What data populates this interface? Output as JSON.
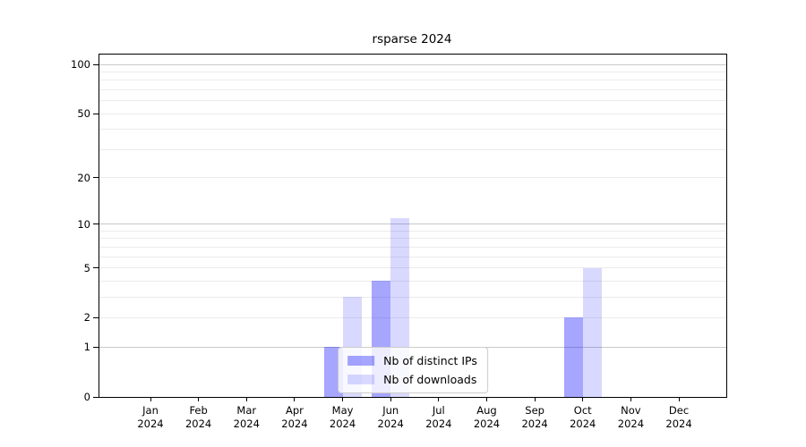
{
  "figure": {
    "title": "rsparse 2024"
  },
  "chart_data": {
    "type": "bar",
    "title": "rsparse 2024",
    "categories": [
      "Jan",
      "Feb",
      "Mar",
      "Apr",
      "May",
      "Jun",
      "Jul",
      "Aug",
      "Sep",
      "Oct",
      "Nov",
      "Dec"
    ],
    "category_year": "2024",
    "series": [
      {
        "name": "Nb of distinct IPs",
        "color": "#0000ff",
        "alpha": 0.35,
        "values": [
          0,
          0,
          0,
          0,
          1,
          4,
          0,
          0,
          0,
          2,
          0,
          0
        ]
      },
      {
        "name": "Nb of downloads",
        "color": "#0000ff",
        "alpha": 0.15,
        "values": [
          0,
          0,
          0,
          0,
          3,
          11,
          0,
          0,
          0,
          5,
          0,
          0
        ]
      }
    ],
    "yscale": "log1p",
    "ylim": [
      0,
      115
    ],
    "yticks": [
      0,
      1,
      2,
      5,
      10,
      20,
      50,
      100
    ],
    "gridlines": {
      "major": [
        1,
        10,
        100
      ],
      "minor": [
        2,
        3,
        4,
        5,
        6,
        7,
        8,
        9,
        20,
        30,
        40,
        50,
        60,
        70,
        80,
        90
      ]
    },
    "legend": {
      "position": "lower center",
      "items": [
        "Nb of distinct IPs",
        "Nb of downloads"
      ]
    },
    "colors": {
      "major_grid": "#c9c9c9",
      "minor_grid": "#ebebeb",
      "axis": "#000000",
      "text": "#000000",
      "background": "#ffffff"
    }
  }
}
